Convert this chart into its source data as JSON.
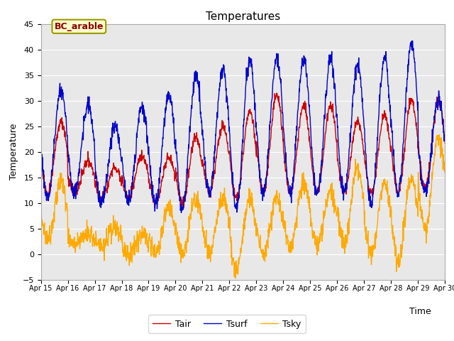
{
  "title": "Temperatures",
  "xlabel": "Time",
  "ylabel": "Temperature",
  "ylim": [
    -5,
    45
  ],
  "yticks": [
    -5,
    0,
    5,
    10,
    15,
    20,
    25,
    30,
    35,
    40,
    45
  ],
  "xtick_labels": [
    "Apr 15",
    "Apr 16",
    "Apr 17",
    "Apr 18",
    "Apr 19",
    "Apr 20",
    "Apr 21",
    "Apr 22",
    "Apr 23",
    "Apr 24",
    "Apr 25",
    "Apr 26",
    "Apr 27",
    "Apr 28",
    "Apr 29",
    "Apr 30"
  ],
  "annotation": "BC_arable",
  "tair_color": "#cc0000",
  "tsurf_color": "#0000cc",
  "tsky_color": "#ffaa00",
  "bg_color": "#e8e8e8",
  "legend_labels": [
    "Tair",
    "Tsurf",
    "Tsky"
  ],
  "tsurf_peaks": [
    32,
    29,
    25,
    29,
    31,
    35,
    36,
    38,
    38,
    38,
    38,
    37,
    38,
    41,
    30
  ],
  "tsurf_troughs": [
    11,
    12,
    10,
    10,
    10,
    9,
    12,
    9,
    12,
    12,
    12,
    12,
    10,
    12,
    12
  ],
  "tair_peaks": [
    26,
    18,
    17,
    19,
    19,
    23,
    25,
    28,
    31,
    29,
    29,
    26,
    27,
    30,
    30
  ],
  "tair_troughs": [
    12,
    12,
    11,
    11,
    10,
    10,
    12,
    11,
    12,
    12,
    12,
    12,
    12,
    12,
    13
  ],
  "tsky_peaks": [
    14,
    4,
    5,
    4,
    9,
    11,
    11,
    11,
    11,
    14,
    12,
    17,
    14,
    15,
    23
  ],
  "tsky_troughs": [
    3,
    2,
    1,
    0,
    0,
    0,
    0,
    -3,
    0,
    1,
    2,
    2,
    0,
    -1,
    5
  ]
}
